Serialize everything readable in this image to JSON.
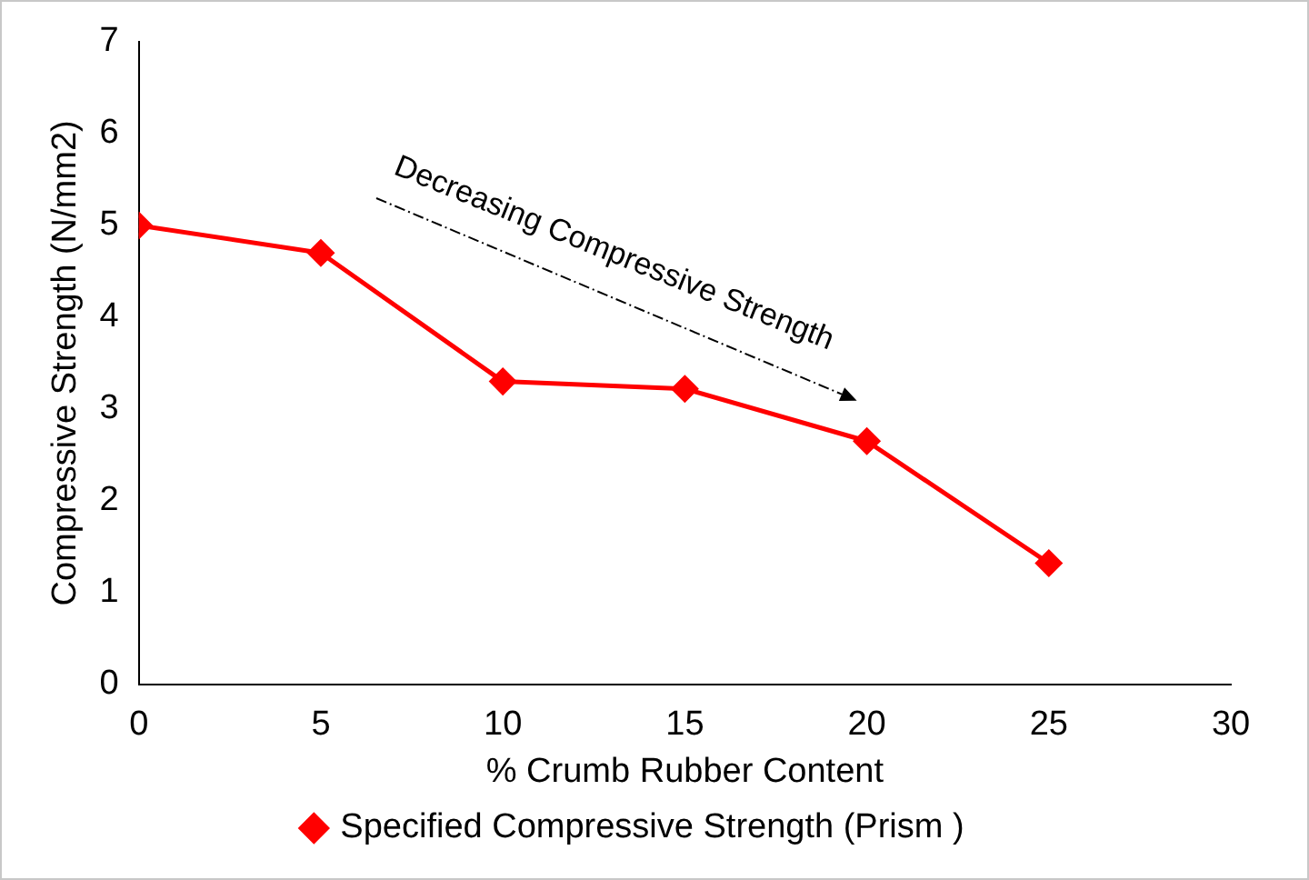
{
  "chart_data": {
    "type": "line",
    "xlabel": "% Crumb Rubber Content",
    "ylabel": "Compressive Strength (N/mm2)",
    "x": [
      0,
      5,
      10,
      15,
      20,
      25
    ],
    "series": [
      {
        "name": "Specified Compressive Strength (Prism )",
        "color": "#ff0000",
        "values": [
          5.0,
          4.7,
          3.3,
          3.22,
          2.65,
          1.32
        ]
      }
    ],
    "xlim": [
      0,
      30
    ],
    "xticks": [
      0,
      5,
      10,
      15,
      20,
      25,
      30
    ],
    "ylim": [
      0,
      7
    ],
    "yticks": [
      0,
      1,
      2,
      3,
      4,
      5,
      6,
      7
    ],
    "grid": false,
    "legend": "bottom",
    "marker": "diamond",
    "line_style": "solid",
    "annotations": [
      "Decreasing Compressive Strength"
    ]
  }
}
